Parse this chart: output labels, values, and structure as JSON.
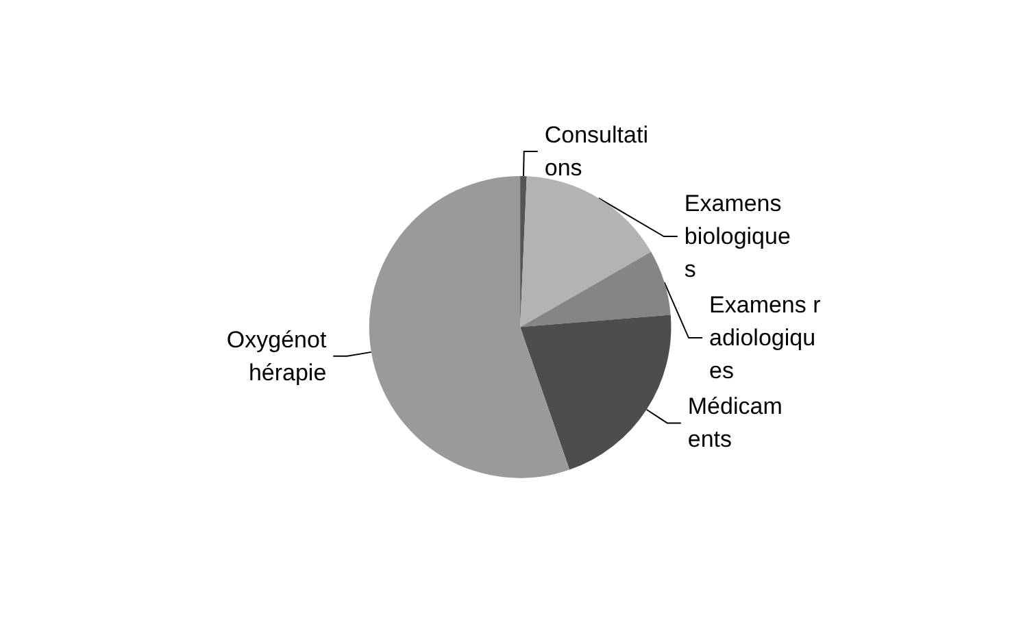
{
  "chart_data": {
    "type": "pie",
    "categories": [
      "Consultations",
      "Examens biologiques",
      "Examens radiologiques",
      "Médicaments",
      "Oxygénothérapie"
    ],
    "values": [
      0.7,
      16,
      7,
      21,
      55.3
    ],
    "colors": [
      "#555555",
      "#b3b3b3",
      "#858585",
      "#4d4d4d",
      "#9a9a9a"
    ],
    "legend": false
  }
}
